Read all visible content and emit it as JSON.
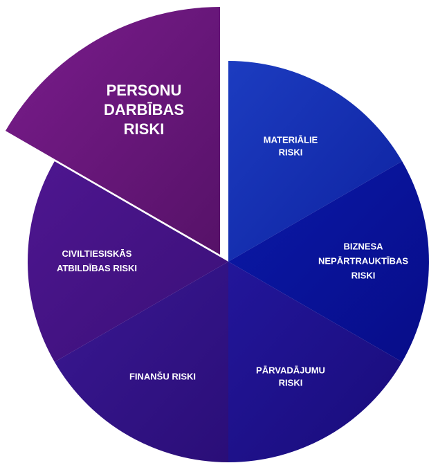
{
  "segments": [
    {
      "lines": [
        "MATERIĀLIE",
        "RISKI"
      ]
    },
    {
      "lines": [
        "BIZNESA",
        "NEPĀRTRAUKTĪBAS",
        "RISKI"
      ]
    },
    {
      "lines": [
        "PĀRVADĀJUMU",
        "RISKI"
      ]
    },
    {
      "lines": [
        "FINANŠU RISKI"
      ]
    },
    {
      "lines": [
        "CIVILTIESISKĀS",
        "ATBILDĪBAS RISKI"
      ]
    },
    {
      "lines": [
        "PERSONU",
        "DARBĪBAS",
        "RISKI"
      ]
    }
  ]
}
